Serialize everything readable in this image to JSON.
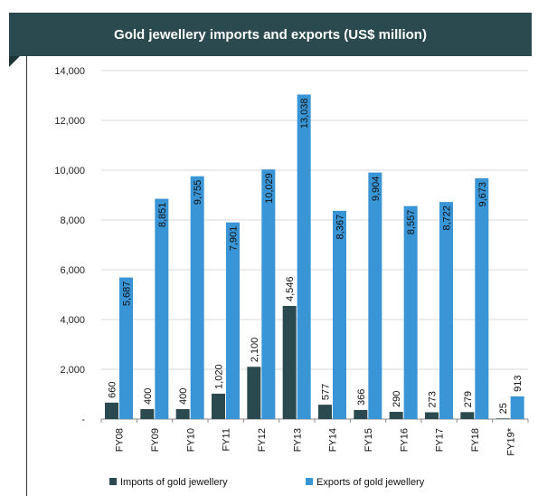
{
  "chart_data": {
    "type": "bar",
    "title": "Gold jewellery imports and exports (US$ million)",
    "categories": [
      "FY08",
      "FY09",
      "FY10",
      "FY11",
      "FY12",
      "FY13",
      "FY14",
      "FY15",
      "FY16",
      "FY17",
      "FY18",
      "FY19*"
    ],
    "series": [
      {
        "name": "Imports of gold jewellery",
        "color": "#2a4a50",
        "values": [
          660,
          400,
          400,
          1020,
          2100,
          4546,
          577,
          366,
          290,
          273,
          279,
          25
        ],
        "labels": [
          "660",
          "400",
          "400",
          "1,020",
          "2,100",
          "4,546",
          "577",
          "366",
          "290",
          "273",
          "279",
          "25"
        ]
      },
      {
        "name": "Exports of gold jewellery",
        "color": "#3a95d6",
        "values": [
          5687,
          8851,
          9755,
          7901,
          10029,
          13038,
          8367,
          9904,
          8557,
          8722,
          9673,
          913
        ],
        "labels": [
          "5,687",
          "8,851",
          "9,755",
          "7,901",
          "10,029",
          "13,038",
          "8,367",
          "9,904",
          "8,557",
          "8,722",
          "9,673",
          "913"
        ]
      }
    ],
    "ylim": [
      0,
      14000
    ],
    "yticks": [
      0,
      2000,
      4000,
      6000,
      8000,
      10000,
      12000,
      14000
    ],
    "ytick_labels": [
      "-",
      "2,000",
      "4,000",
      "6,000",
      "8,000",
      "10,000",
      "12,000",
      "14,000"
    ],
    "grid": true,
    "legend_position": "bottom"
  }
}
